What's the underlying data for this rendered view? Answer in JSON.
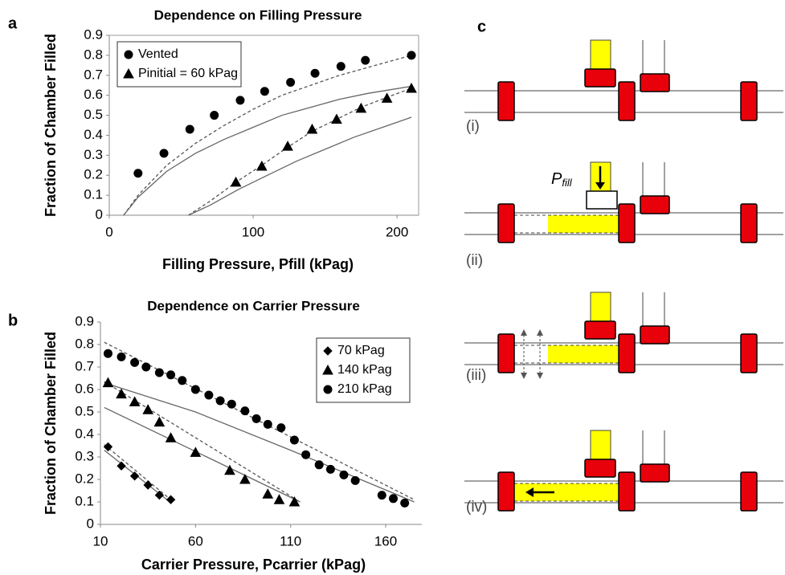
{
  "chart_data": [
    {
      "type": "scatter",
      "panel": "a",
      "title": "Dependence on Filling Pressure",
      "xlabel": "Filling Pressure, Pfill (kPag)",
      "ylabel": "Fraction of Chamber Filled",
      "xlim": [
        0,
        215
      ],
      "xticks": [
        0,
        100,
        200
      ],
      "ylim": [
        0,
        0.9
      ],
      "yticks": [
        0,
        0.1,
        0.2,
        0.3,
        0.4,
        0.5,
        0.6,
        0.7,
        0.8,
        0.9
      ],
      "frame": true,
      "legend": "upper left",
      "series": [
        {
          "name": "Vented",
          "color": "#000000",
          "marker": "circle",
          "x": [
            20,
            38,
            56,
            73,
            91,
            108,
            126,
            143,
            161,
            178,
            210
          ],
          "values": [
            0.21,
            0.31,
            0.43,
            0.5,
            0.575,
            0.62,
            0.665,
            0.71,
            0.745,
            0.775,
            0.8
          ]
        },
        {
          "name": "Pinitial = 60 kPag",
          "color": "#000000",
          "marker": "triangle",
          "x": [
            88,
            106,
            124,
            141,
            158,
            175,
            193,
            210
          ],
          "values": [
            0.165,
            0.245,
            0.345,
            0.43,
            0.48,
            0.535,
            0.585,
            0.635
          ]
        }
      ],
      "curves": [
        {
          "style": "dashed",
          "x": [
            10,
            20,
            40,
            60,
            80,
            100,
            120,
            140,
            160,
            180,
            210
          ],
          "y": [
            0,
            0.1,
            0.25,
            0.36,
            0.45,
            0.53,
            0.6,
            0.65,
            0.7,
            0.74,
            0.8
          ]
        },
        {
          "style": "solid",
          "x": [
            10,
            20,
            40,
            60,
            80,
            100,
            120,
            140,
            160,
            180,
            210
          ],
          "y": [
            0,
            0.09,
            0.22,
            0.31,
            0.38,
            0.44,
            0.5,
            0.54,
            0.58,
            0.61,
            0.645
          ]
        },
        {
          "style": "dashed",
          "x": [
            55,
            70,
            88,
            106,
            124,
            141,
            158,
            175,
            193,
            210
          ],
          "y": [
            0,
            0.07,
            0.165,
            0.25,
            0.34,
            0.42,
            0.48,
            0.54,
            0.59,
            0.635
          ]
        },
        {
          "style": "solid",
          "x": [
            55,
            70,
            90,
            110,
            130,
            150,
            170,
            190,
            210
          ],
          "y": [
            0,
            0.05,
            0.13,
            0.2,
            0.27,
            0.33,
            0.39,
            0.44,
            0.49
          ]
        }
      ]
    },
    {
      "type": "scatter",
      "panel": "b",
      "title": "Dependence on Carrier Pressure",
      "xlabel": "Carrier Pressure, Pcarrier (kPag)",
      "ylabel": "Fraction of Chamber Filled",
      "xlim": [
        10,
        179
      ],
      "xticks": [
        10,
        60,
        110,
        160
      ],
      "ylim": [
        0,
        0.9
      ],
      "yticks": [
        0,
        0.1,
        0.2,
        0.3,
        0.4,
        0.5,
        0.6,
        0.7,
        0.8,
        0.9
      ],
      "frame": false,
      "legend": "upper right",
      "series": [
        {
          "name": "70 kPag",
          "color": "#000000",
          "marker": "diamond",
          "x": [
            14,
            21,
            28,
            35,
            41,
            47
          ],
          "values": [
            0.345,
            0.26,
            0.215,
            0.175,
            0.13,
            0.11
          ]
        },
        {
          "name": "140 kPag",
          "color": "#000000",
          "marker": "triangle",
          "x": [
            14,
            21,
            28,
            35,
            41,
            47,
            60,
            78,
            86,
            98,
            104,
            112
          ],
          "values": [
            0.63,
            0.58,
            0.545,
            0.51,
            0.455,
            0.385,
            0.32,
            0.24,
            0.2,
            0.135,
            0.11,
            0.1
          ]
        },
        {
          "name": "210 kPag",
          "color": "#000000",
          "marker": "circle",
          "x": [
            14,
            21,
            28,
            34,
            41,
            47,
            53,
            60,
            67,
            73,
            79,
            86,
            92,
            98,
            105,
            112,
            118,
            125,
            131,
            138,
            144,
            158,
            164,
            170
          ],
          "values": [
            0.76,
            0.745,
            0.72,
            0.7,
            0.675,
            0.665,
            0.64,
            0.6,
            0.575,
            0.55,
            0.535,
            0.505,
            0.47,
            0.445,
            0.43,
            0.375,
            0.31,
            0.265,
            0.245,
            0.22,
            0.195,
            0.13,
            0.115,
            0.095
          ]
        }
      ],
      "curves": [
        {
          "style": "dashed",
          "x": [
            12,
            47
          ],
          "y": [
            0.355,
            0.11
          ]
        },
        {
          "style": "solid",
          "x": [
            12,
            45
          ],
          "y": [
            0.33,
            0.11
          ]
        },
        {
          "style": "dashed",
          "x": [
            12,
            115
          ],
          "y": [
            0.635,
            0.1
          ]
        },
        {
          "style": "solid",
          "x": [
            12,
            115
          ],
          "y": [
            0.52,
            0.1
          ]
        },
        {
          "style": "dashed",
          "x": [
            12,
            175
          ],
          "y": [
            0.81,
            0.11
          ]
        },
        {
          "style": "solid",
          "x": [
            12,
            60,
            110,
            175
          ],
          "y": [
            0.63,
            0.5,
            0.33,
            0.1
          ]
        }
      ]
    }
  ],
  "diagram": {
    "panel": "c",
    "steps": [
      "(i)",
      "(ii)",
      "(iii)",
      "(iv)"
    ],
    "pfill": "P",
    "pfill_sub": "fill"
  }
}
